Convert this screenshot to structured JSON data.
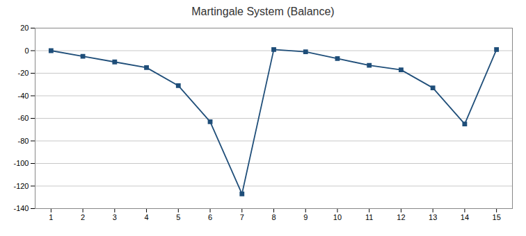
{
  "chart_data": {
    "type": "line",
    "title": "Martingale System (Balance)",
    "x": [
      1,
      2,
      3,
      4,
      5,
      6,
      7,
      8,
      9,
      10,
      11,
      12,
      13,
      14,
      15
    ],
    "values": [
      0,
      -5,
      -10,
      -15,
      -31,
      -63,
      -127,
      1,
      -1,
      -7,
      -13,
      -17,
      -33,
      -65,
      1
    ],
    "color": "#1F4E79",
    "marker": "square",
    "xlim": [
      0.5,
      15.5
    ],
    "xticks": [
      1,
      2,
      3,
      4,
      5,
      6,
      7,
      8,
      9,
      10,
      11,
      12,
      13,
      14,
      15
    ],
    "ylim": [
      -140,
      20
    ],
    "yticks": [
      -140,
      -120,
      -100,
      -80,
      -60,
      -40,
      -20,
      0,
      20
    ],
    "grid": "y"
  }
}
